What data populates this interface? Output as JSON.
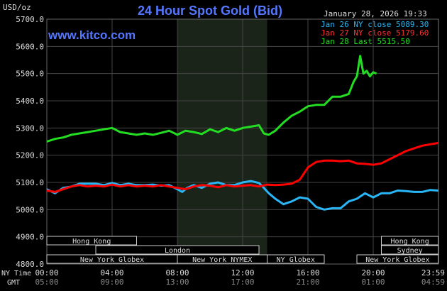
{
  "header": {
    "title": "24 Hour Spot Gold (Bid)",
    "unit": "USD/oz",
    "website": "www.kitco.com",
    "timestamp": "January 28, 2026 19:33"
  },
  "legend": [
    {
      "label": "Jan 26 NY close 5089.30",
      "color": "#29b6f6"
    },
    {
      "label": "Jan 27 NY close 5179.60",
      "color": "#ff0000"
    },
    {
      "label": "Jan 28 Last 5515.50",
      "color": "#22dd22"
    }
  ],
  "axis_rows": {
    "ny_label": "NY Time",
    "gmt_label": "GMT",
    "ny_ticks": [
      "00:00",
      "04:00",
      "08:00",
      "12:00",
      "16:00",
      "20:00",
      "23:59"
    ],
    "gmt_ticks": [
      "05:00",
      "09:00",
      "13:00",
      "17:00",
      "21:00",
      "01:00",
      "04:59"
    ]
  },
  "sessions": [
    {
      "label": "Hong Kong",
      "start": 0,
      "end": 5.5,
      "row": 0
    },
    {
      "label": "Hong Kong",
      "start": 20.5,
      "end": 23.99,
      "row": 0
    },
    {
      "label": "London",
      "start": 3,
      "end": 13,
      "row": 1
    },
    {
      "label": "Sydney",
      "start": 20.5,
      "end": 23.99,
      "row": 1
    },
    {
      "label": "New York Globex",
      "start": 0,
      "end": 8,
      "row": 2
    },
    {
      "label": "New York NYMEX",
      "start": 8,
      "end": 13.5,
      "row": 2
    },
    {
      "label": "NY Globex",
      "start": 13.5,
      "end": 17,
      "row": 2
    },
    {
      "label": "New York Globex",
      "start": 19,
      "end": 23.99,
      "row": 2
    }
  ],
  "colors": {
    "background": "#000000",
    "grid": "#444444",
    "nymex_shade": "#1a2418",
    "title": "#5577ff",
    "text": "#dddddd",
    "session_box": "#cccccc"
  },
  "chart_data": {
    "type": "line",
    "title": "24 Hour Spot Gold (Bid)",
    "ylabel": "USD/oz",
    "xlabel": "NY Time",
    "xlim": [
      0,
      24
    ],
    "ylim": [
      4800,
      5700
    ],
    "yticks": [
      "5700.0",
      "5600.0",
      "5500.0",
      "5400.0",
      "5300.0",
      "5200.0",
      "5100.0",
      "5000.0",
      "4900.0",
      "4800.0"
    ],
    "grid": true,
    "legend_position": "top-right",
    "shaded_region": [
      8,
      13.5
    ],
    "series": [
      {
        "name": "Jan 26 NY close 5089.30",
        "color": "#29b6f6",
        "x": [
          0,
          0.5,
          1,
          1.5,
          2,
          2.5,
          3,
          3.5,
          4,
          4.5,
          5,
          5.5,
          6,
          6.5,
          7,
          7.5,
          8,
          8.3,
          8.6,
          9,
          9.5,
          10,
          10.5,
          11,
          11.5,
          12,
          12.5,
          13,
          13.3,
          13.6,
          14,
          14.5,
          15,
          15.5,
          16,
          16.5,
          17,
          17.5,
          18,
          18.5,
          19,
          19.5,
          20,
          20.5,
          21,
          21.5,
          22,
          22.5,
          23,
          23.5,
          23.99
        ],
        "y": [
          5075,
          5060,
          5080,
          5085,
          5095,
          5095,
          5095,
          5090,
          5098,
          5090,
          5095,
          5090,
          5090,
          5092,
          5088,
          5090,
          5075,
          5065,
          5080,
          5090,
          5080,
          5095,
          5100,
          5090,
          5090,
          5100,
          5105,
          5098,
          5080,
          5060,
          5040,
          5020,
          5030,
          5045,
          5040,
          5010,
          5000,
          5005,
          5005,
          5030,
          5040,
          5060,
          5045,
          5060,
          5060,
          5070,
          5068,
          5065,
          5065,
          5072,
          5070
        ]
      },
      {
        "name": "Jan 27 NY close 5179.60",
        "color": "#ff0000",
        "x": [
          0,
          0.5,
          1,
          1.5,
          2,
          2.5,
          3,
          3.5,
          4,
          4.5,
          5,
          5.5,
          6,
          6.5,
          7,
          7.5,
          8,
          8.5,
          9,
          9.5,
          10,
          10.5,
          11,
          11.5,
          12,
          12.5,
          13,
          13.5,
          14,
          14.5,
          15,
          15.5,
          16,
          16.5,
          17,
          17.5,
          18,
          18.5,
          19,
          19.5,
          20,
          20.5,
          21,
          21.5,
          22,
          22.5,
          23,
          23.5,
          23.99
        ],
        "y": [
          5070,
          5065,
          5075,
          5085,
          5090,
          5085,
          5088,
          5085,
          5092,
          5085,
          5090,
          5085,
          5088,
          5085,
          5090,
          5085,
          5080,
          5075,
          5085,
          5090,
          5088,
          5082,
          5090,
          5085,
          5088,
          5090,
          5085,
          5092,
          5090,
          5092,
          5095,
          5110,
          5155,
          5175,
          5180,
          5180,
          5178,
          5180,
          5170,
          5168,
          5165,
          5170,
          5185,
          5200,
          5215,
          5225,
          5235,
          5240,
          5245
        ]
      },
      {
        "name": "Jan 28 Last 5515.50",
        "color": "#22dd22",
        "x": [
          0,
          0.5,
          1,
          1.5,
          2,
          2.5,
          3,
          3.5,
          4,
          4.5,
          5,
          5.5,
          6,
          6.5,
          7,
          7.5,
          8,
          8.5,
          9,
          9.5,
          10,
          10.5,
          11,
          11.5,
          12,
          12.5,
          13,
          13.3,
          13.6,
          14,
          14.5,
          15,
          15.5,
          16,
          16.5,
          17,
          17.5,
          18,
          18.5,
          18.8,
          19,
          19.2,
          19.4,
          19.6,
          19.8,
          20,
          20.2
        ],
        "y": [
          5250,
          5260,
          5265,
          5275,
          5280,
          5285,
          5290,
          5295,
          5300,
          5285,
          5280,
          5275,
          5280,
          5275,
          5282,
          5290,
          5275,
          5290,
          5285,
          5278,
          5295,
          5285,
          5300,
          5290,
          5300,
          5305,
          5310,
          5280,
          5275,
          5290,
          5320,
          5345,
          5360,
          5380,
          5385,
          5385,
          5415,
          5415,
          5425,
          5470,
          5490,
          5565,
          5500,
          5510,
          5490,
          5505,
          5500
        ]
      }
    ]
  }
}
